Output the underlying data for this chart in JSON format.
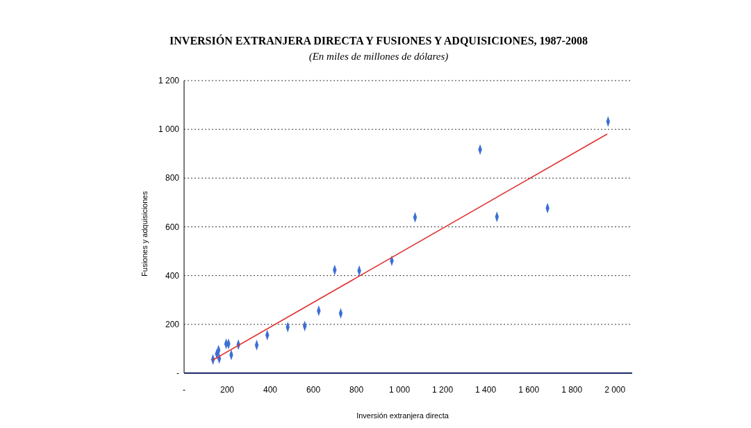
{
  "chart_data": {
    "type": "scatter",
    "title": "INVERSIÓN EXTRANJERA DIRECTA Y FUSIONES Y ADQUISICIONES, 1987-2008",
    "subtitle": "(En miles de millones de dólares)",
    "xlabel": "Inversión extranjera directa",
    "ylabel": "Fusiones y adquisiciones",
    "xlim": [
      0,
      2080
    ],
    "ylim": [
      0,
      1200
    ],
    "xticks": [
      {
        "value": 0,
        "label": "-"
      },
      200,
      400,
      600,
      800,
      {
        "value": 1000,
        "label": "1 000"
      },
      {
        "value": 1200,
        "label": "1 200"
      },
      {
        "value": 1400,
        "label": "1 400"
      },
      {
        "value": 1600,
        "label": "1 600"
      },
      {
        "value": 1800,
        "label": "1 800"
      },
      {
        "value": 2000,
        "label": "2 000"
      }
    ],
    "yticks": [
      {
        "value": 0,
        "label": "-"
      },
      200,
      400,
      600,
      800,
      {
        "value": 1000,
        "label": "1 000"
      },
      {
        "value": 1200,
        "label": "1 200"
      }
    ],
    "grid": "y",
    "series": [
      {
        "marker": "diamond",
        "color": "#3b6fd4",
        "x": [
          134,
          152,
          160,
          163,
          195,
          206,
          219,
          252,
          337,
          386,
          481,
          560,
          625,
          699,
          727,
          813,
          964,
          1072,
          1374,
          1452,
          1687,
          1968
        ],
        "values": [
          56,
          79,
          94,
          60,
          120,
          120,
          75,
          117,
          115,
          156,
          189,
          193,
          256,
          423,
          245,
          420,
          461,
          639,
          917,
          641,
          677,
          1032
        ]
      },
      {
        "type": "line",
        "color": "#e03030",
        "x": [
          134,
          1962
        ],
        "values": [
          54,
          980
        ]
      }
    ]
  }
}
